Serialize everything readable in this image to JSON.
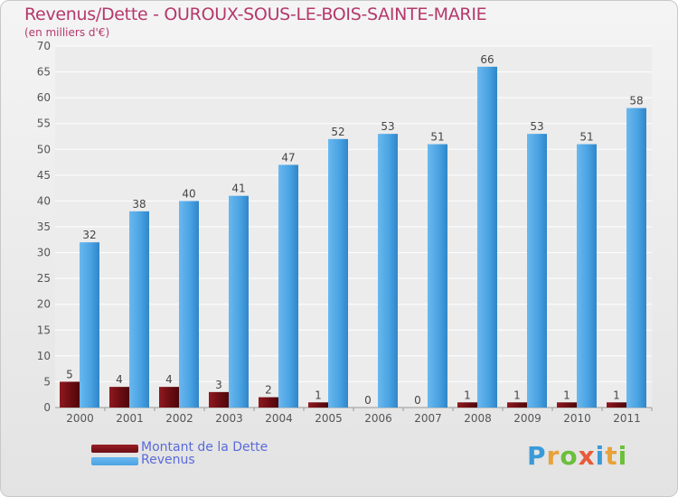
{
  "header": {
    "title": "Revenus/Dette - OUROUX-SOUS-LE-BOIS-SAINTE-MARIE",
    "subtitle": "(en milliers d'€)"
  },
  "legend": {
    "items": [
      {
        "label": "Montant de la Dette",
        "color": "#6b0d12"
      },
      {
        "label": "Revenus",
        "color": "#4aa3e3"
      }
    ]
  },
  "brand": {
    "text": "Proxiti",
    "colors": [
      "#3a9ad9",
      "#e8a23a",
      "#6bbf3a",
      "#e85a3a",
      "#3a9ad9",
      "#e8a23a",
      "#6bbf3a"
    ]
  },
  "chart_data": {
    "type": "bar",
    "title": "Revenus/Dette - OUROUX-SOUS-LE-BOIS-SAINTE-MARIE",
    "subtitle": "(en milliers d'€)",
    "categories": [
      "2000",
      "2001",
      "2002",
      "2003",
      "2004",
      "2005",
      "2006",
      "2007",
      "2008",
      "2009",
      "2010",
      "2011"
    ],
    "series": [
      {
        "name": "Montant de la Dette",
        "values": [
          5,
          4,
          4,
          3,
          2,
          1,
          0,
          0,
          1,
          1,
          1,
          1
        ],
        "color": "#6b0d12"
      },
      {
        "name": "Revenus",
        "values": [
          32,
          38,
          40,
          41,
          47,
          52,
          53,
          51,
          66,
          53,
          51,
          58
        ],
        "color": "#4aa3e3"
      }
    ],
    "ylim": [
      0,
      70
    ],
    "yticks": [
      0,
      5,
      10,
      15,
      20,
      25,
      30,
      35,
      40,
      45,
      50,
      55,
      60,
      65,
      70
    ],
    "grid": true,
    "legend_position": "bottom-left"
  }
}
